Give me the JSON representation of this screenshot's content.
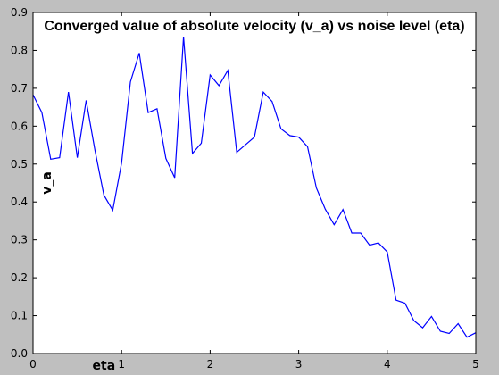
{
  "colors": {
    "figure_background": "#bfbfbf",
    "plot_background": "#ffffff",
    "line": "#0000ff",
    "axes": "#000000"
  },
  "chart_data": {
    "type": "line",
    "title": "Converged value of absolute velocity (v_a) vs noise level (eta)",
    "xlabel": "eta",
    "ylabel": "v_a",
    "xlim": [
      0,
      5
    ],
    "ylim": [
      0,
      0.9
    ],
    "grid": false,
    "xticks": [
      "0",
      "1",
      "2",
      "3",
      "4",
      "5"
    ],
    "yticks": [
      "0.0",
      "0.1",
      "0.2",
      "0.3",
      "0.4",
      "0.5",
      "0.6",
      "0.7",
      "0.8",
      "0.9"
    ],
    "series": [
      {
        "x": [
          0,
          0.1,
          0.2,
          0.3,
          0.4,
          0.5,
          0.6,
          0.7,
          0.8,
          0.9,
          1.0,
          1.1,
          1.2,
          1.3,
          1.4,
          1.5,
          1.6,
          1.7,
          1.8,
          1.9,
          2.0,
          2.1,
          2.2,
          2.3,
          2.4,
          2.5,
          2.6,
          2.7,
          2.8,
          2.9,
          3.0,
          3.1,
          3.2,
          3.3,
          3.4,
          3.5,
          3.6,
          3.7,
          3.8,
          3.9,
          4.0,
          4.1,
          4.2,
          4.3,
          4.4,
          4.5,
          4.6,
          4.7,
          4.8,
          4.9,
          5.0
        ],
        "y": [
          0.683,
          0.636,
          0.513,
          0.517,
          0.69,
          0.517,
          0.668,
          0.536,
          0.418,
          0.378,
          0.503,
          0.717,
          0.793,
          0.636,
          0.646,
          0.515,
          0.464,
          0.836,
          0.528,
          0.555,
          0.735,
          0.707,
          0.747,
          0.531,
          0.551,
          0.571,
          0.69,
          0.665,
          0.593,
          0.575,
          0.571,
          0.546,
          0.437,
          0.381,
          0.34,
          0.38,
          0.318,
          0.318,
          0.286,
          0.292,
          0.268,
          0.141,
          0.133,
          0.087,
          0.068,
          0.098,
          0.059,
          0.053,
          0.079,
          0.043,
          0.055
        ]
      }
    ]
  }
}
